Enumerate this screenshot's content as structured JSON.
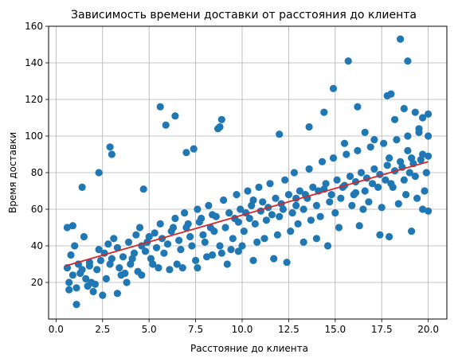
{
  "chart_data": {
    "type": "scatter",
    "title": "Зависимость времени доставки от расстояния до клиента",
    "xlabel": "Расстояние до клиента",
    "ylabel": "Время доставки",
    "xlim": [
      0,
      21
    ],
    "ylim": [
      0,
      160
    ],
    "xticks": [
      "0.0",
      "2.5",
      "5.0",
      "7.5",
      "10.0",
      "12.5",
      "15.0",
      "17.5",
      "20.0"
    ],
    "yticks": [
      "20",
      "40",
      "60",
      "80",
      "100",
      "120",
      "140",
      "160"
    ],
    "grid": true,
    "point_color": "#1f77b4",
    "line_color": "#d62728",
    "trend_line": {
      "x": [
        0.5,
        20.0
      ],
      "y": [
        29,
        86
      ]
    },
    "points": [
      [
        1.1,
        8
      ],
      [
        1.4,
        72
      ],
      [
        2.3,
        80
      ],
      [
        2.9,
        94
      ],
      [
        3.0,
        90
      ],
      [
        3.3,
        14
      ],
      [
        4.7,
        71
      ],
      [
        5.6,
        116
      ],
      [
        5.9,
        106
      ],
      [
        6.4,
        111
      ],
      [
        7.0,
        91
      ],
      [
        7.4,
        93
      ],
      [
        8.7,
        104
      ],
      [
        8.9,
        109
      ],
      [
        8.8,
        105
      ],
      [
        12.0,
        101
      ],
      [
        13.6,
        105
      ],
      [
        14.4,
        113
      ],
      [
        14.9,
        126
      ],
      [
        15.7,
        141
      ],
      [
        16.2,
        116
      ],
      [
        17.8,
        122
      ],
      [
        18.0,
        123
      ],
      [
        18.5,
        153
      ],
      [
        18.9,
        141
      ],
      [
        19.3,
        113
      ],
      [
        19.7,
        110
      ],
      [
        20.0,
        112
      ],
      [
        18.2,
        109
      ],
      [
        16.6,
        102
      ],
      [
        15.5,
        96
      ],
      [
        17.1,
        98
      ],
      [
        18.7,
        115
      ],
      [
        19.5,
        104
      ],
      [
        20.0,
        100
      ],
      [
        0.6,
        50
      ],
      [
        0.9,
        51
      ],
      [
        1.5,
        45
      ],
      [
        0.7,
        16
      ],
      [
        2.0,
        15
      ],
      [
        2.5,
        13
      ],
      [
        3.8,
        20
      ],
      [
        4.6,
        24
      ],
      [
        5.2,
        30
      ],
      [
        6.1,
        27
      ],
      [
        6.8,
        28
      ],
      [
        7.6,
        28
      ],
      [
        8.4,
        35
      ],
      [
        9.2,
        30
      ],
      [
        9.8,
        37
      ],
      [
        10.6,
        32
      ],
      [
        11.7,
        33
      ],
      [
        12.4,
        31
      ],
      [
        13.3,
        42
      ],
      [
        14.0,
        44
      ],
      [
        14.6,
        40
      ],
      [
        15.2,
        50
      ],
      [
        16.3,
        51
      ],
      [
        17.4,
        46
      ],
      [
        17.9,
        45
      ],
      [
        19.1,
        48
      ],
      [
        20.0,
        59
      ],
      [
        19.7,
        60
      ],
      [
        19.0,
        80
      ],
      [
        18.4,
        63
      ],
      [
        17.5,
        61
      ],
      [
        16.8,
        64
      ],
      [
        16.1,
        69
      ],
      [
        15.4,
        72
      ],
      [
        14.8,
        68
      ],
      [
        14.1,
        70
      ],
      [
        13.5,
        66
      ],
      [
        12.9,
        62
      ],
      [
        12.2,
        60
      ],
      [
        11.6,
        57
      ],
      [
        11.0,
        59
      ],
      [
        10.4,
        55
      ],
      [
        9.8,
        53
      ],
      [
        9.1,
        50
      ],
      [
        8.5,
        48
      ],
      [
        7.9,
        46
      ],
      [
        7.2,
        45
      ],
      [
        6.6,
        43
      ],
      [
        6.0,
        41
      ],
      [
        5.4,
        39
      ],
      [
        4.8,
        37
      ],
      [
        4.2,
        36
      ],
      [
        3.6,
        34
      ],
      [
        3.0,
        33
      ],
      [
        2.4,
        32
      ],
      [
        1.8,
        31
      ],
      [
        1.2,
        30
      ],
      [
        0.6,
        28
      ],
      [
        0.8,
        35
      ],
      [
        1.0,
        40
      ],
      [
        1.3,
        25
      ],
      [
        1.6,
        22
      ],
      [
        1.9,
        20
      ],
      [
        2.2,
        27
      ],
      [
        2.6,
        36
      ],
      [
        2.8,
        41
      ],
      [
        3.1,
        44
      ],
      [
        3.4,
        28
      ],
      [
        3.7,
        25
      ],
      [
        4.0,
        30
      ],
      [
        4.3,
        46
      ],
      [
        4.5,
        50
      ],
      [
        4.9,
        42
      ],
      [
        5.1,
        33
      ],
      [
        5.3,
        47
      ],
      [
        5.6,
        52
      ],
      [
        5.8,
        36
      ],
      [
        6.2,
        48
      ],
      [
        6.4,
        55
      ],
      [
        6.7,
        38
      ],
      [
        6.9,
        58
      ],
      [
        7.1,
        52
      ],
      [
        7.3,
        40
      ],
      [
        7.6,
        60
      ],
      [
        7.8,
        55
      ],
      [
        8.0,
        42
      ],
      [
        8.2,
        62
      ],
      [
        8.3,
        50
      ],
      [
        8.6,
        56
      ],
      [
        8.8,
        40
      ],
      [
        9.0,
        65
      ],
      [
        9.3,
        58
      ],
      [
        9.5,
        44
      ],
      [
        9.7,
        68
      ],
      [
        9.9,
        60
      ],
      [
        10.1,
        48
      ],
      [
        10.3,
        70
      ],
      [
        10.5,
        62
      ],
      [
        10.7,
        52
      ],
      [
        10.9,
        72
      ],
      [
        11.1,
        64
      ],
      [
        11.3,
        54
      ],
      [
        11.5,
        74
      ],
      [
        11.8,
        66
      ],
      [
        12.0,
        56
      ],
      [
        12.3,
        76
      ],
      [
        12.5,
        68
      ],
      [
        12.7,
        58
      ],
      [
        12.8,
        80
      ],
      [
        13.1,
        70
      ],
      [
        13.3,
        60
      ],
      [
        13.6,
        82
      ],
      [
        13.8,
        72
      ],
      [
        14.0,
        62
      ],
      [
        14.3,
        86
      ],
      [
        14.5,
        74
      ],
      [
        14.7,
        64
      ],
      [
        14.9,
        88
      ],
      [
        15.1,
        76
      ],
      [
        15.3,
        66
      ],
      [
        15.6,
        90
      ],
      [
        15.8,
        78
      ],
      [
        16.0,
        68
      ],
      [
        16.2,
        92
      ],
      [
        16.4,
        80
      ],
      [
        16.6,
        70
      ],
      [
        16.9,
        94
      ],
      [
        17.1,
        82
      ],
      [
        17.3,
        72
      ],
      [
        17.6,
        96
      ],
      [
        17.8,
        84
      ],
      [
        18.0,
        74
      ],
      [
        18.3,
        98
      ],
      [
        18.5,
        86
      ],
      [
        18.7,
        76
      ],
      [
        18.9,
        100
      ],
      [
        19.1,
        88
      ],
      [
        19.3,
        78
      ],
      [
        19.5,
        102
      ],
      [
        19.7,
        90
      ],
      [
        19.9,
        80
      ],
      [
        19.8,
        70
      ],
      [
        19.4,
        66
      ],
      [
        18.8,
        68
      ],
      [
        18.1,
        72
      ],
      [
        17.7,
        76
      ],
      [
        17.0,
        74
      ],
      [
        16.5,
        60
      ],
      [
        15.9,
        62
      ],
      [
        15.0,
        58
      ],
      [
        14.2,
        56
      ],
      [
        13.7,
        54
      ],
      [
        13.0,
        52
      ],
      [
        12.6,
        48
      ],
      [
        11.9,
        46
      ],
      [
        11.2,
        44
      ],
      [
        10.8,
        42
      ],
      [
        10.0,
        40
      ],
      [
        9.4,
        38
      ],
      [
        8.9,
        36
      ],
      [
        8.1,
        34
      ],
      [
        7.5,
        32
      ],
      [
        6.5,
        30
      ],
      [
        5.5,
        28
      ],
      [
        4.4,
        26
      ],
      [
        3.5,
        24
      ],
      [
        2.7,
        22
      ],
      [
        2.1,
        19
      ],
      [
        1.7,
        18
      ],
      [
        1.1,
        17
      ],
      [
        0.7,
        20
      ],
      [
        0.9,
        24
      ],
      [
        1.4,
        27
      ],
      [
        1.8,
        29
      ],
      [
        2.3,
        38
      ],
      [
        2.9,
        30
      ],
      [
        3.3,
        39
      ],
      [
        3.9,
        42
      ],
      [
        4.1,
        33
      ],
      [
        4.6,
        40
      ],
      [
        5.0,
        45
      ],
      [
        5.7,
        44
      ],
      [
        6.3,
        50
      ],
      [
        7.0,
        50
      ],
      [
        7.7,
        53
      ],
      [
        8.4,
        57
      ],
      [
        9.6,
        55
      ],
      [
        10.2,
        58
      ],
      [
        10.6,
        65
      ],
      [
        11.4,
        61
      ],
      [
        12.1,
        63
      ],
      [
        12.9,
        66
      ],
      [
        13.4,
        68
      ],
      [
        14.4,
        71
      ],
      [
        15.5,
        73
      ],
      [
        16.1,
        75
      ],
      [
        16.7,
        77
      ],
      [
        17.4,
        79
      ],
      [
        18.2,
        81
      ],
      [
        18.6,
        83
      ],
      [
        19.2,
        85
      ],
      [
        19.6,
        87
      ],
      [
        20.0,
        89
      ],
      [
        18.9,
        92
      ],
      [
        17.9,
        88
      ]
    ]
  }
}
